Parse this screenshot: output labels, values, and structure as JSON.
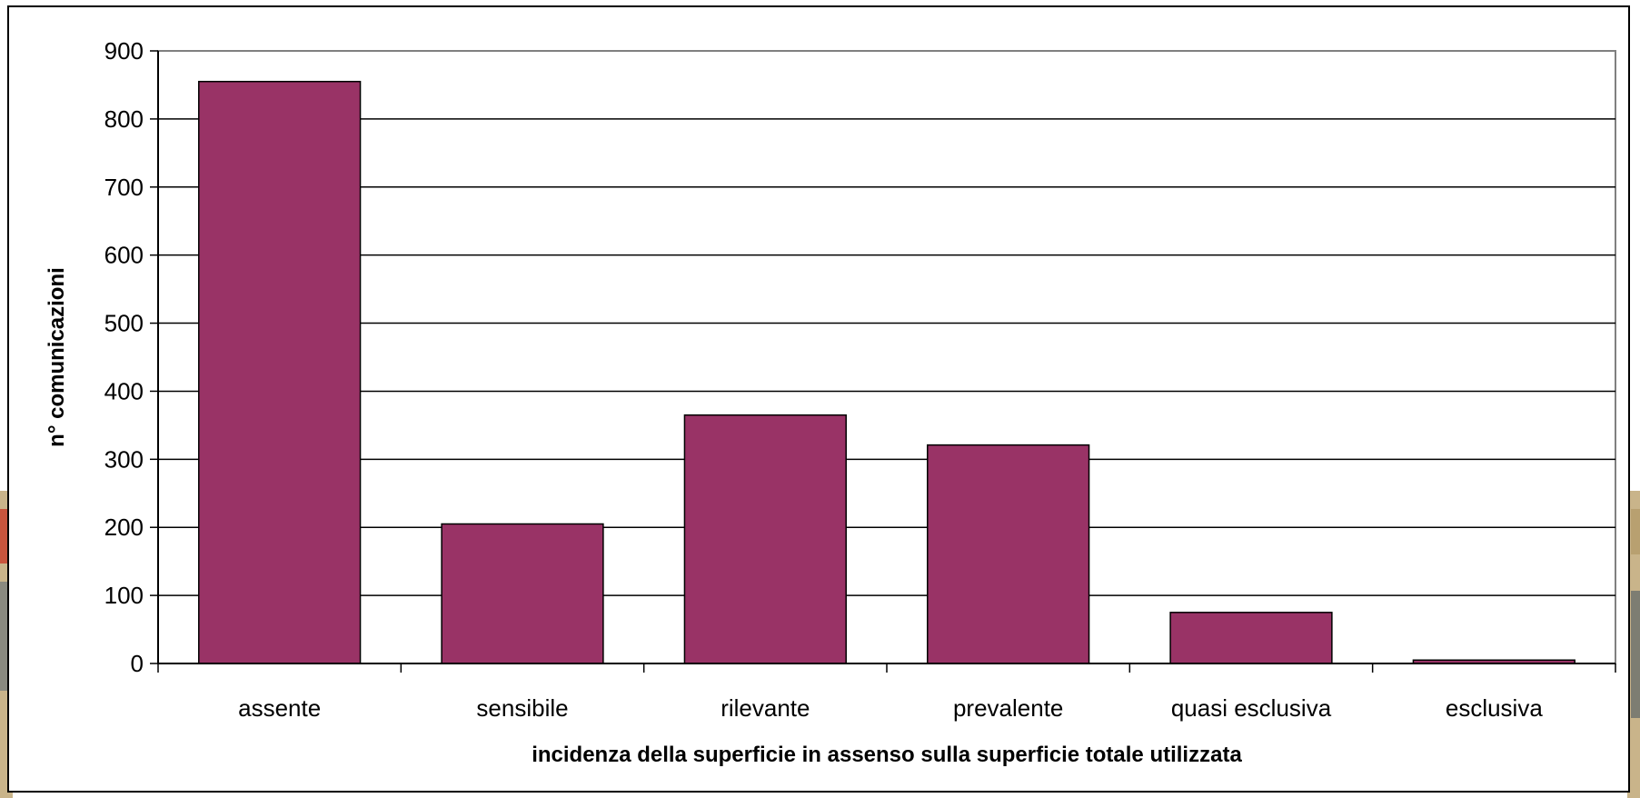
{
  "chart_data": {
    "type": "bar",
    "title": "",
    "xlabel": "incidenza della superficie in assenso sulla superficie totale utilizzata",
    "ylabel": "n° comunicazioni",
    "categories": [
      "assente",
      "sensibile",
      "rilevante",
      "prevalente",
      "quasi esclusiva",
      "esclusiva"
    ],
    "values": [
      855,
      205,
      365,
      321,
      75,
      5
    ],
    "ylim": [
      0,
      900
    ],
    "yticks": [
      0,
      100,
      200,
      300,
      400,
      500,
      600,
      700,
      800,
      900
    ],
    "grid": true,
    "legend": "none",
    "colors": {
      "bar": "#993366",
      "bar_stroke": "#000000",
      "grid": "#000000",
      "frame": "#000000"
    }
  }
}
